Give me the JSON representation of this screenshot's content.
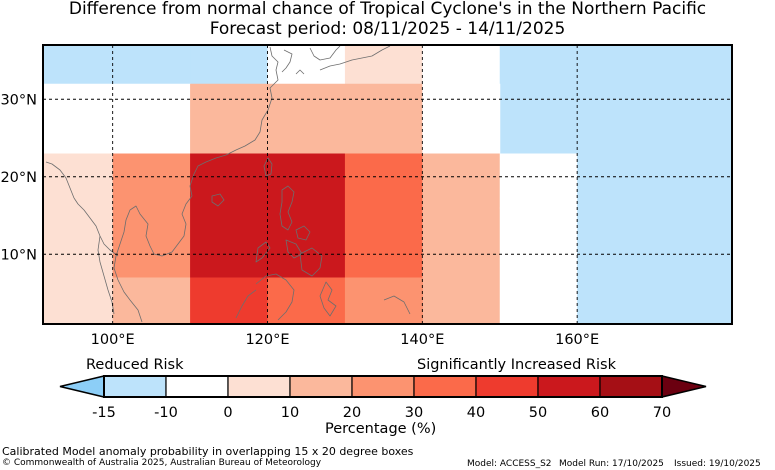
{
  "title": {
    "line1": "Difference from normal chance of Tropical Cyclone's in the Northern Pacific",
    "line2": "Forecast period: 08/11/2025 - 14/11/2025"
  },
  "map": {
    "lon_range": [
      91,
      180
    ],
    "lat_range": [
      1,
      37
    ],
    "lon_ticks": [
      {
        "value": 100,
        "label": "100°E"
      },
      {
        "value": 120,
        "label": "120°E"
      },
      {
        "value": 140,
        "label": "140°E"
      },
      {
        "value": 160,
        "label": "160°E"
      }
    ],
    "lat_ticks": [
      {
        "value": 10,
        "label": "10°N"
      },
      {
        "value": 20,
        "label": "20°N"
      },
      {
        "value": 30,
        "label": "30°N"
      }
    ],
    "gridlines": "dashed",
    "cells": [
      {
        "lon": [
          91,
          110
        ],
        "lat": [
          32,
          37
        ],
        "value": -15
      },
      {
        "lon": [
          110,
          120
        ],
        "lat": [
          32,
          37
        ],
        "value": -15
      },
      {
        "lon": [
          120,
          130
        ],
        "lat": [
          32,
          37
        ],
        "value": -10
      },
      {
        "lon": [
          130,
          140
        ],
        "lat": [
          32,
          37
        ],
        "value": 5
      },
      {
        "lon": [
          140,
          150
        ],
        "lat": [
          32,
          37
        ],
        "value": -10
      },
      {
        "lon": [
          150,
          180
        ],
        "lat": [
          23,
          37
        ],
        "value": -15
      },
      {
        "lon": [
          91,
          100
        ],
        "lat": [
          23,
          32
        ],
        "value": -10
      },
      {
        "lon": [
          100,
          110
        ],
        "lat": [
          23,
          32
        ],
        "value": -5
      },
      {
        "lon": [
          110,
          140
        ],
        "lat": [
          23,
          32
        ],
        "value": 15
      },
      {
        "lon": [
          140,
          150
        ],
        "lat": [
          23,
          32
        ],
        "value": -5
      },
      {
        "lon": [
          91,
          100
        ],
        "lat": [
          1,
          23
        ],
        "value": 5
      },
      {
        "lon": [
          100,
          110
        ],
        "lat": [
          7,
          23
        ],
        "value": 25
      },
      {
        "lon": [
          110,
          130
        ],
        "lat": [
          7,
          23
        ],
        "value": 55
      },
      {
        "lon": [
          130,
          140
        ],
        "lat": [
          7,
          23
        ],
        "value": 35
      },
      {
        "lon": [
          140,
          150
        ],
        "lat": [
          1,
          23
        ],
        "value": 15
      },
      {
        "lon": [
          150,
          160
        ],
        "lat": [
          16,
          23
        ],
        "value": -10
      },
      {
        "lon": [
          150,
          160
        ],
        "lat": [
          1,
          16
        ],
        "value": -5
      },
      {
        "lon": [
          160,
          180
        ],
        "lat": [
          1,
          23
        ],
        "value": -15
      },
      {
        "lon": [
          100,
          110
        ],
        "lat": [
          1,
          7
        ],
        "value": 15
      },
      {
        "lon": [
          110,
          120
        ],
        "lat": [
          1,
          7
        ],
        "value": 45
      },
      {
        "lon": [
          120,
          130
        ],
        "lat": [
          1,
          7
        ],
        "value": 35
      },
      {
        "lon": [
          130,
          140
        ],
        "lat": [
          1,
          7
        ],
        "value": 25
      }
    ]
  },
  "colorbar": {
    "left_label": "Reduced Risk",
    "right_label": "Significantly Increased Risk",
    "xlabel": "Percentage (%)",
    "ticks": [
      "-15",
      "-10",
      "0",
      "10",
      "20",
      "30",
      "40",
      "50",
      "60",
      "70"
    ],
    "low_extend_color": "#8ccef7",
    "high_extend_color": "#6b0010",
    "bins": [
      {
        "from": -15,
        "to": -10,
        "color": "#bde3fb"
      },
      {
        "from": -10,
        "to": 0,
        "color": "#ffffff"
      },
      {
        "from": 0,
        "to": 10,
        "color": "#fde0d3"
      },
      {
        "from": 10,
        "to": 20,
        "color": "#fbb89c"
      },
      {
        "from": 20,
        "to": 30,
        "color": "#fc9370"
      },
      {
        "from": 30,
        "to": 40,
        "color": "#fb6a4a"
      },
      {
        "from": 40,
        "to": 50,
        "color": "#ee3b2e"
      },
      {
        "from": 50,
        "to": 60,
        "color": "#cb181d"
      },
      {
        "from": 60,
        "to": 70,
        "color": "#a50f15"
      }
    ]
  },
  "footer": {
    "description": "Calibrated Model anomaly probability in overlapping 15 x 20 degree boxes",
    "copyright": "© Commonwealth of Australia 2025, Australian Bureau of Meteorology",
    "model": "Model: ACCESS_S2",
    "model_run": "Model Run: 17/10/2025",
    "issued": "Issued: 19/10/2025"
  }
}
